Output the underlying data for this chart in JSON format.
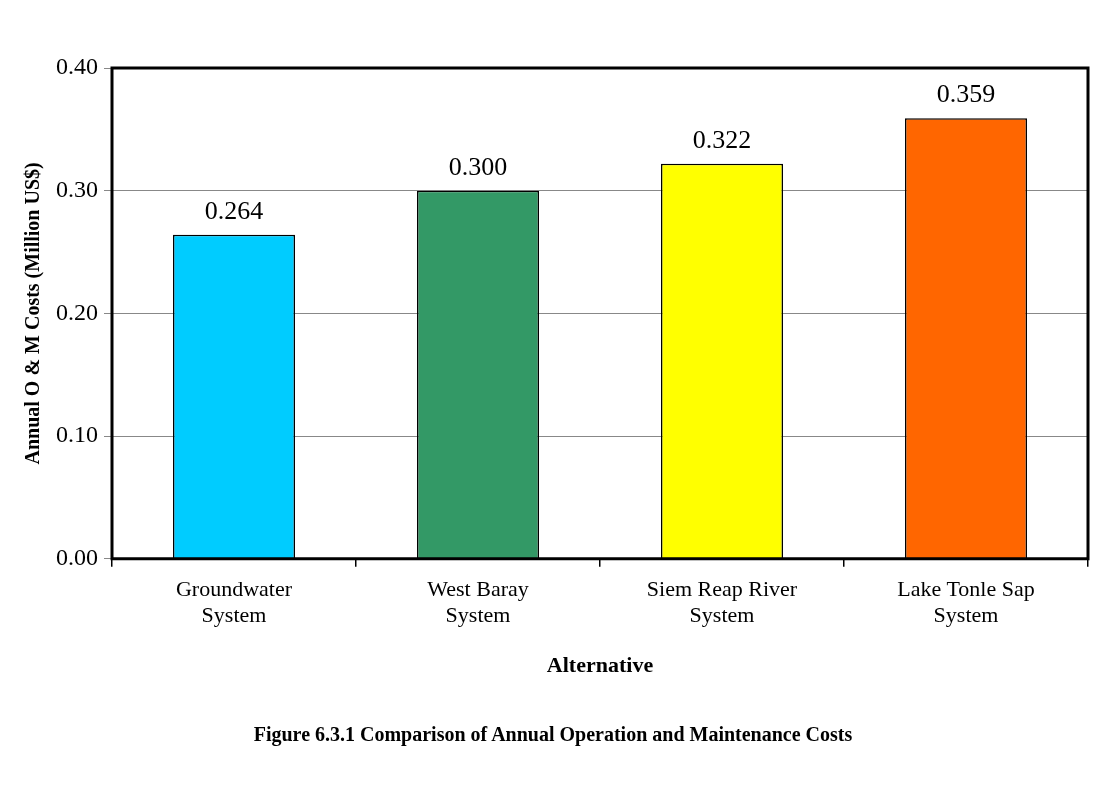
{
  "chart_data": {
    "type": "bar",
    "title": "Figure 6.3.1 Comparison of Annual Operation and Maintenance Costs",
    "xlabel": "Alternative",
    "ylabel": "Annual O & M Costs (Million US$)",
    "categories": [
      "Groundwater System",
      "West Baray System",
      "Siem Reap River System",
      "Lake Tonle Sap System"
    ],
    "values": [
      0.264,
      0.3,
      0.322,
      0.359
    ],
    "value_labels": [
      "0.264",
      "0.300",
      "0.322",
      "0.359"
    ],
    "colors": [
      "#00ccff",
      "#339966",
      "#ffff00",
      "#ff6600"
    ],
    "ylim": [
      0,
      0.4
    ],
    "yticks": [
      {
        "value": 0,
        "label": "0.00"
      },
      {
        "value": 0.1,
        "label": "0.10"
      },
      {
        "value": 0.2,
        "label": "0.20"
      },
      {
        "value": 0.3,
        "label": "0.30"
      },
      {
        "value": 0.4,
        "label": "0.40"
      }
    ],
    "grid": "y",
    "legend": false
  }
}
